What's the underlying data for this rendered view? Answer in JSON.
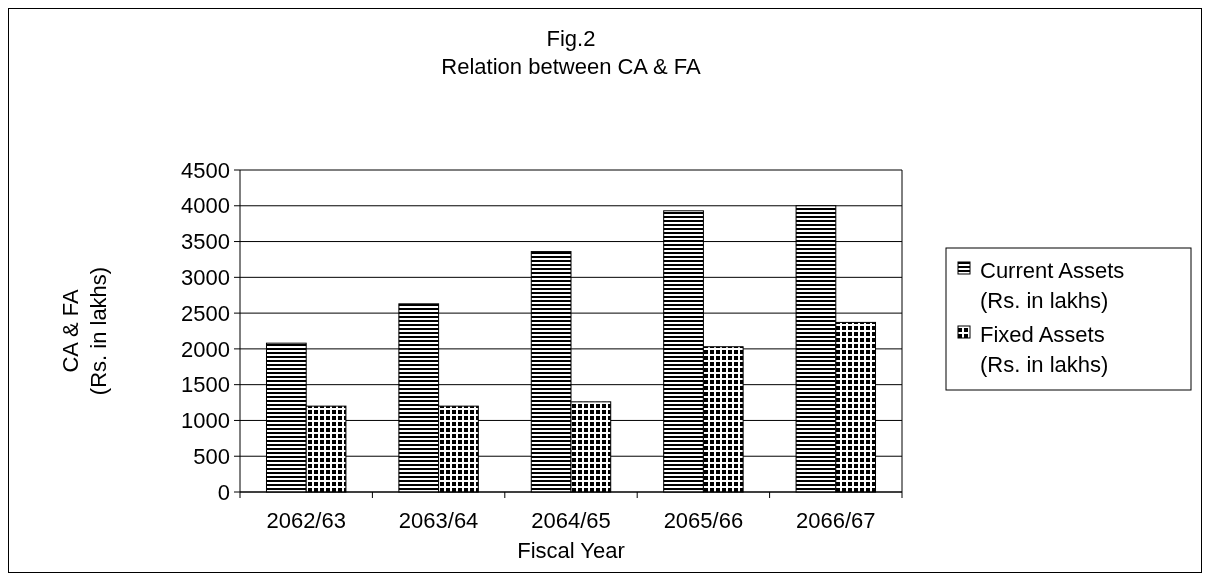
{
  "chart_data": {
    "type": "bar",
    "title": "Fig.2",
    "subtitle": "Relation between CA & FA",
    "xlabel": "Fiscal Year",
    "ylabel": "CA & FA\n(Rs. in lakhs)",
    "categories": [
      "2062/63",
      "2063/64",
      "2064/65",
      "2065/66",
      "2066/67"
    ],
    "series": [
      {
        "name": "Current Assets\n(Rs. in lakhs)",
        "color": "#000000",
        "values": [
          2080,
          2630,
          3360,
          3930,
          4000
        ]
      },
      {
        "name": "Fixed Assets\n(Rs. in lakhs)",
        "color": "#000000",
        "values": [
          1200,
          1200,
          1260,
          2030,
          2370
        ]
      }
    ],
    "ylim": [
      0,
      4500
    ],
    "yticks": [
      0,
      500,
      1000,
      1500,
      2000,
      2500,
      3000,
      3500,
      4000,
      4500
    ],
    "grid": "y",
    "legend": "right"
  }
}
